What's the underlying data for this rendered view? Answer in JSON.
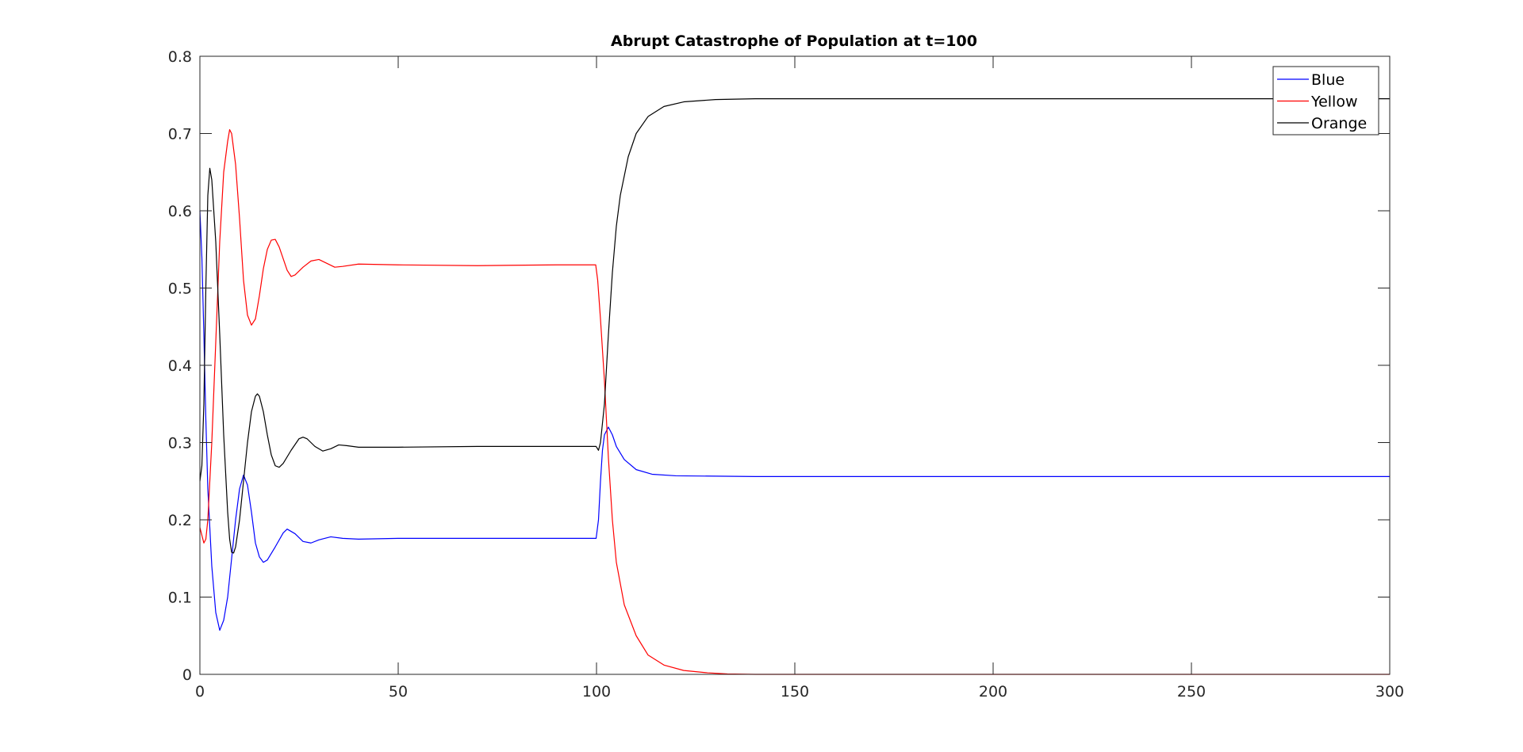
{
  "chart_data": {
    "type": "line",
    "title": "Abrupt Catastrophe of Population at t=100",
    "xlabel": "",
    "ylabel": "",
    "xlim": [
      0,
      300
    ],
    "ylim": [
      0,
      0.8
    ],
    "xticks": [
      0,
      50,
      100,
      150,
      200,
      250,
      300
    ],
    "xtick_labels": [
      "0",
      "50",
      "100",
      "150",
      "200",
      "250",
      "300"
    ],
    "yticks": [
      0,
      0.1,
      0.2,
      0.3,
      0.4,
      0.5,
      0.6,
      0.7,
      0.8
    ],
    "ytick_labels": [
      "0",
      "0.1",
      "0.2",
      "0.3",
      "0.4",
      "0.5",
      "0.6",
      "0.7",
      "0.8"
    ],
    "grid": false,
    "legend_position": "top-right",
    "series": [
      {
        "name": "Blue",
        "color": "#0000ff",
        "points": [
          [
            0,
            0.6
          ],
          [
            0.5,
            0.54
          ],
          [
            1,
            0.44
          ],
          [
            1.5,
            0.33
          ],
          [
            2,
            0.24
          ],
          [
            3,
            0.14
          ],
          [
            4,
            0.08
          ],
          [
            5,
            0.057
          ],
          [
            6,
            0.07
          ],
          [
            7,
            0.1
          ],
          [
            8,
            0.15
          ],
          [
            9,
            0.2
          ],
          [
            10,
            0.24
          ],
          [
            11,
            0.258
          ],
          [
            12,
            0.245
          ],
          [
            13,
            0.21
          ],
          [
            14,
            0.17
          ],
          [
            15,
            0.152
          ],
          [
            16,
            0.145
          ],
          [
            17,
            0.148
          ],
          [
            19,
            0.165
          ],
          [
            21,
            0.183
          ],
          [
            22,
            0.188
          ],
          [
            24,
            0.182
          ],
          [
            26,
            0.172
          ],
          [
            28,
            0.17
          ],
          [
            30,
            0.174
          ],
          [
            33,
            0.178
          ],
          [
            36,
            0.176
          ],
          [
            40,
            0.175
          ],
          [
            50,
            0.176
          ],
          [
            70,
            0.176
          ],
          [
            90,
            0.176
          ],
          [
            99.9,
            0.176
          ],
          [
            100.5,
            0.2
          ],
          [
            101,
            0.25
          ],
          [
            101.5,
            0.29
          ],
          [
            102,
            0.31
          ],
          [
            103,
            0.32
          ],
          [
            104,
            0.31
          ],
          [
            105,
            0.295
          ],
          [
            107,
            0.278
          ],
          [
            110,
            0.265
          ],
          [
            114,
            0.259
          ],
          [
            120,
            0.257
          ],
          [
            140,
            0.256
          ],
          [
            200,
            0.256
          ],
          [
            300,
            0.256
          ]
        ]
      },
      {
        "name": "Yellow",
        "color": "#ff0000",
        "points": [
          [
            0,
            0.19
          ],
          [
            0.5,
            0.18
          ],
          [
            1,
            0.17
          ],
          [
            1.5,
            0.175
          ],
          [
            2,
            0.2
          ],
          [
            3,
            0.3
          ],
          [
            4,
            0.43
          ],
          [
            5,
            0.56
          ],
          [
            6,
            0.65
          ],
          [
            7,
            0.69
          ],
          [
            7.5,
            0.705
          ],
          [
            8,
            0.7
          ],
          [
            9,
            0.66
          ],
          [
            10,
            0.59
          ],
          [
            11,
            0.51
          ],
          [
            12,
            0.465
          ],
          [
            13,
            0.452
          ],
          [
            14,
            0.46
          ],
          [
            15,
            0.49
          ],
          [
            16,
            0.525
          ],
          [
            17,
            0.55
          ],
          [
            18,
            0.562
          ],
          [
            19,
            0.563
          ],
          [
            20,
            0.553
          ],
          [
            21,
            0.538
          ],
          [
            22,
            0.523
          ],
          [
            23,
            0.515
          ],
          [
            24,
            0.517
          ],
          [
            26,
            0.527
          ],
          [
            28,
            0.535
          ],
          [
            30,
            0.537
          ],
          [
            32,
            0.532
          ],
          [
            34,
            0.527
          ],
          [
            36,
            0.528
          ],
          [
            40,
            0.531
          ],
          [
            50,
            0.53
          ],
          [
            70,
            0.529
          ],
          [
            90,
            0.53
          ],
          [
            99.8,
            0.53
          ],
          [
            100.3,
            0.51
          ],
          [
            101,
            0.46
          ],
          [
            102,
            0.38
          ],
          [
            103,
            0.28
          ],
          [
            104,
            0.2
          ],
          [
            105,
            0.145
          ],
          [
            107,
            0.09
          ],
          [
            110,
            0.05
          ],
          [
            113,
            0.025
          ],
          [
            117,
            0.012
          ],
          [
            122,
            0.005
          ],
          [
            128,
            0.002
          ],
          [
            133,
            0.0005
          ],
          [
            140,
            0
          ],
          [
            300,
            0
          ]
        ]
      },
      {
        "name": "Orange",
        "color": "#000000",
        "points": [
          [
            0,
            0.25
          ],
          [
            0.5,
            0.27
          ],
          [
            1,
            0.35
          ],
          [
            1.5,
            0.5
          ],
          [
            2,
            0.62
          ],
          [
            2.5,
            0.655
          ],
          [
            3,
            0.64
          ],
          [
            4,
            0.56
          ],
          [
            5,
            0.44
          ],
          [
            6,
            0.31
          ],
          [
            7,
            0.21
          ],
          [
            7.5,
            0.175
          ],
          [
            8,
            0.158
          ],
          [
            8.5,
            0.157
          ],
          [
            9,
            0.165
          ],
          [
            10,
            0.2
          ],
          [
            11,
            0.25
          ],
          [
            12,
            0.3
          ],
          [
            13,
            0.34
          ],
          [
            14,
            0.36
          ],
          [
            14.5,
            0.363
          ],
          [
            15,
            0.36
          ],
          [
            16,
            0.34
          ],
          [
            17,
            0.31
          ],
          [
            18,
            0.284
          ],
          [
            19,
            0.27
          ],
          [
            20,
            0.268
          ],
          [
            21,
            0.273
          ],
          [
            23,
            0.29
          ],
          [
            25,
            0.305
          ],
          [
            26,
            0.307
          ],
          [
            27,
            0.305
          ],
          [
            29,
            0.295
          ],
          [
            31,
            0.289
          ],
          [
            33,
            0.292
          ],
          [
            35,
            0.297
          ],
          [
            37,
            0.296
          ],
          [
            40,
            0.294
          ],
          [
            50,
            0.294
          ],
          [
            70,
            0.295
          ],
          [
            90,
            0.295
          ],
          [
            99.9,
            0.295
          ],
          [
            100.5,
            0.29
          ],
          [
            101,
            0.3
          ],
          [
            102,
            0.35
          ],
          [
            103,
            0.44
          ],
          [
            104,
            0.52
          ],
          [
            105,
            0.58
          ],
          [
            106,
            0.62
          ],
          [
            108,
            0.67
          ],
          [
            110,
            0.7
          ],
          [
            113,
            0.722
          ],
          [
            117,
            0.735
          ],
          [
            122,
            0.741
          ],
          [
            130,
            0.744
          ],
          [
            140,
            0.745
          ],
          [
            200,
            0.745
          ],
          [
            300,
            0.745
          ]
        ]
      }
    ]
  }
}
